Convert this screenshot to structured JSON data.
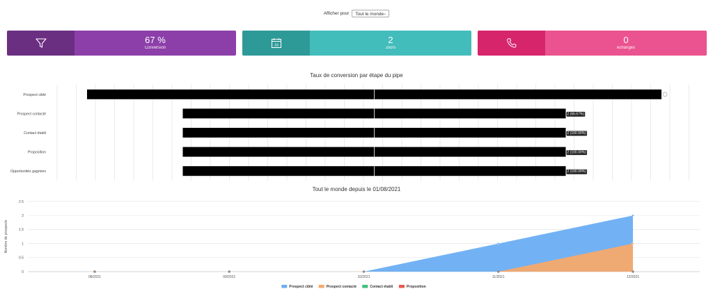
{
  "filter": {
    "label": "Afficher pour",
    "selected": "Tout le monde"
  },
  "kpis": [
    {
      "value": "67 %",
      "label": "Conversion",
      "icon": "funnel-icon"
    },
    {
      "value": "2",
      "label": "Jours",
      "icon": "calendar-icon",
      "icon_text": "16"
    },
    {
      "value": "0",
      "label": "échanges",
      "icon": "phone-icon"
    }
  ],
  "funnel": {
    "title": "Taux de conversion par étape du pipe",
    "stages": [
      {
        "label": "Prospect ciblé",
        "value": 3,
        "pct": null,
        "value_label": ""
      },
      {
        "label": "Prospect contacté",
        "value": 2,
        "pct": 66.67,
        "value_label": "2 (66.67%)"
      },
      {
        "label": "Contact établi",
        "value": 2,
        "pct": 100,
        "value_label": "2 (100.00%)"
      },
      {
        "label": "Proposition",
        "value": 2,
        "pct": 100,
        "value_label": "2 (100.00%)"
      },
      {
        "label": "Opportunités gagnées",
        "value": 2,
        "pct": 100,
        "value_label": "2 (100.00%)"
      }
    ],
    "bar_color": "#000000"
  },
  "chart_data": {
    "type": "area",
    "title": "Tout le monde depuis le 01/08/2021",
    "ylabel": "Nombre de prospects",
    "xlabel": "",
    "x": [
      "08/2021",
      "09/2021",
      "10/2021",
      "11/2021",
      "12/2021"
    ],
    "ylim": [
      0,
      2.5
    ],
    "yticks": [
      "0",
      "0.5",
      "1",
      "1.5",
      "2",
      "2.5"
    ],
    "grid": true,
    "legend_position": "bottom",
    "series": [
      {
        "name": "Prospect ciblé",
        "color": "#6aaef3",
        "values": [
          0,
          0,
          0,
          1,
          2
        ]
      },
      {
        "name": "Prospect contacté",
        "color": "#f6a96b",
        "values": [
          0,
          0,
          0,
          0,
          1
        ]
      },
      {
        "name": "Contact établi",
        "color": "#3fbf7f",
        "values": [
          0,
          0,
          0,
          0,
          0
        ]
      },
      {
        "name": "Proposition",
        "color": "#e9574a",
        "values": [
          0,
          0,
          0,
          0,
          0
        ]
      }
    ]
  }
}
